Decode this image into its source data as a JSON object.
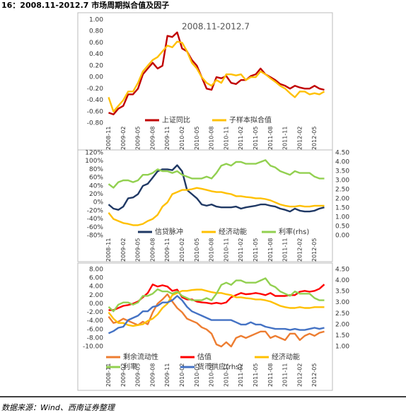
{
  "caption": "16：2008.11-2012.7 市场周期拟合值及因子",
  "source": "数据来源：Wind、西南证券整理",
  "chart_data": [
    {
      "type": "line",
      "title": "2008.11-2012.7",
      "categories": [
        "2008-11",
        null,
        null,
        "2009-02",
        null,
        null,
        "2009-05",
        null,
        null,
        "2009-08",
        null,
        null,
        "2009-11",
        null,
        null,
        "2010-02",
        null,
        null,
        "2010-05",
        null,
        null,
        "2010-08",
        null,
        null,
        "2010-11",
        null,
        null,
        "2011-02",
        null,
        null,
        "2011-05",
        null,
        null,
        "2011-08",
        null,
        null,
        "2011-11",
        null,
        null,
        "2012-02",
        null,
        null,
        "2012-05",
        null,
        null
      ],
      "ylim": [
        -0.8,
        1
      ],
      "yticks": [
        {
          "value": 1,
          "label": "1.00"
        },
        {
          "value": 0.8,
          "label": "0.80"
        },
        {
          "value": 0.6,
          "label": "0.60"
        },
        {
          "value": 0.4,
          "label": "0.40"
        },
        {
          "value": 0.2,
          "label": "0.20"
        },
        {
          "value": 0,
          "label": "0.00"
        },
        {
          "value": -0.2,
          "label": "-0.20"
        },
        {
          "value": -0.4,
          "label": "-0.40"
        },
        {
          "value": -0.6,
          "label": "-0.60"
        },
        {
          "value": -0.8,
          "label": "-0.80"
        }
      ],
      "series": [
        {
          "name": "上证同比",
          "color": "#c00000",
          "values": [
            -0.62,
            -0.65,
            -0.55,
            -0.5,
            -0.3,
            -0.3,
            -0.2,
            0.05,
            0.15,
            0.25,
            0.15,
            0.2,
            0.72,
            0.7,
            0.78,
            0.5,
            0.45,
            0.3,
            0.2,
            0.0,
            -0.2,
            -0.22,
            0.0,
            -0.02,
            0.02,
            -0.1,
            -0.12,
            -0.05,
            -0.05,
            0.02,
            0.05,
            0.15,
            0.05,
            0.0,
            -0.05,
            -0.12,
            -0.15,
            -0.2,
            -0.15,
            -0.18,
            -0.2,
            -0.2,
            -0.15,
            -0.2,
            -0.22
          ]
        },
        {
          "name": "子样本拟合值",
          "color": "#ffc000",
          "values": [
            -0.35,
            -0.6,
            -0.5,
            -0.4,
            -0.25,
            -0.25,
            -0.1,
            0.1,
            0.2,
            0.3,
            0.35,
            0.45,
            0.55,
            0.52,
            0.62,
            0.6,
            0.45,
            0.25,
            0.15,
            0.0,
            -0.1,
            -0.15,
            -0.05,
            -0.1,
            0.05,
            0.05,
            0.03,
            0.05,
            -0.05,
            0.0,
            0.0,
            0.1,
            0.05,
            -0.02,
            -0.08,
            -0.15,
            -0.2,
            -0.28,
            -0.35,
            -0.25,
            -0.25,
            -0.3,
            -0.28,
            -0.3,
            -0.25
          ]
        }
      ]
    },
    {
      "type": "line",
      "categories": [
        "2008-11",
        null,
        null,
        "2009-02",
        null,
        null,
        "2009-05",
        null,
        null,
        "2009-08",
        null,
        null,
        "2009-11",
        null,
        null,
        "2010-02",
        null,
        null,
        "2010-05",
        null,
        null,
        "2010-08",
        null,
        null,
        "2010-11",
        null,
        null,
        "2011-02",
        null,
        null,
        "2011-05",
        null,
        null,
        "2011-08",
        null,
        null,
        "2011-11",
        null,
        null,
        "2012-02",
        null,
        null,
        "2012-05",
        null,
        null
      ],
      "ylim": [
        -80,
        120
      ],
      "yticks": [
        {
          "value": 120,
          "label": "120%"
        },
        {
          "value": 100,
          "label": "100%"
        },
        {
          "value": 80,
          "label": "80%"
        },
        {
          "value": 60,
          "label": "60%"
        },
        {
          "value": 40,
          "label": "40%"
        },
        {
          "value": 20,
          "label": "20%"
        },
        {
          "value": 0,
          "label": "0%"
        },
        {
          "value": -20,
          "label": "-20%"
        },
        {
          "value": -40,
          "label": "-40%"
        },
        {
          "value": -60,
          "label": "-60%"
        },
        {
          "value": -80,
          "label": "-80%"
        }
      ],
      "y2lim": [
        0,
        4.5
      ],
      "y2ticks": [
        {
          "value": 4.5,
          "label": "4.50"
        },
        {
          "value": 4,
          "label": "4.00"
        },
        {
          "value": 3.5,
          "label": "3.50"
        },
        {
          "value": 3,
          "label": "3.00"
        },
        {
          "value": 2.5,
          "label": "2.50"
        },
        {
          "value": 2,
          "label": "2.00"
        },
        {
          "value": 1.5,
          "label": "1.50"
        },
        {
          "value": 1,
          "label": "1.00"
        },
        {
          "value": 0.5,
          "label": "0.50"
        },
        {
          "value": 0,
          "label": "0.00"
        }
      ],
      "series": [
        {
          "name": "信贷脉冲",
          "color": "#1f3864",
          "values": [
            -5,
            -15,
            -18,
            -10,
            10,
            12,
            20,
            40,
            45,
            60,
            75,
            80,
            80,
            78,
            90,
            75,
            30,
            20,
            10,
            -5,
            -8,
            -5,
            -10,
            -12,
            -12,
            -12,
            -10,
            -15,
            -12,
            -10,
            -8,
            -5,
            -5,
            -8,
            -10,
            -15,
            -18,
            -22,
            -15,
            -20,
            -22,
            -22,
            -20,
            -15,
            -12
          ]
        },
        {
          "name": "经济动能",
          "color": "#ffc000",
          "values": [
            -25,
            -40,
            -45,
            -50,
            -52,
            -55,
            -55,
            -52,
            -45,
            -40,
            -30,
            -10,
            0,
            20,
            25,
            30,
            30,
            32,
            35,
            33,
            30,
            27,
            25,
            25,
            22,
            20,
            15,
            15,
            13,
            12,
            10,
            10,
            8,
            5,
            0,
            -5,
            -8,
            -10,
            -10,
            -8,
            -10,
            -10,
            -8,
            -8,
            -8
          ]
        },
        {
          "name": "利率(rhs)",
          "color": "#92d050",
          "axis": "y2",
          "values": [
            2.8,
            2.6,
            2.9,
            3.0,
            3.0,
            2.9,
            3.0,
            3.3,
            3.3,
            3.4,
            3.6,
            3.5,
            3.5,
            3.4,
            3.5,
            3.3,
            3.2,
            3.1,
            3.1,
            3.1,
            3.2,
            3.1,
            3.4,
            3.8,
            3.9,
            3.8,
            4.0,
            4.0,
            3.9,
            3.9,
            3.9,
            4.0,
            4.1,
            3.8,
            3.7,
            3.5,
            3.4,
            3.3,
            3.5,
            3.4,
            3.4,
            3.4,
            3.2,
            3.1,
            3.1
          ]
        }
      ]
    },
    {
      "type": "line",
      "categories": [
        "2008-11",
        null,
        null,
        "2009-02",
        null,
        null,
        "2009-05",
        null,
        null,
        "2009-08",
        null,
        null,
        "2009-11",
        null,
        null,
        "2010-02",
        null,
        null,
        "2010-05",
        null,
        null,
        "2010-08",
        null,
        null,
        "2010-11",
        null,
        null,
        "2011-02",
        null,
        null,
        "2011-05",
        null,
        null,
        "2011-08",
        null,
        null,
        "2011-11",
        null,
        null,
        "2012-02",
        null,
        null,
        "2012-05",
        null,
        null
      ],
      "ylim": [
        -10,
        8
      ],
      "yticks": [
        {
          "value": 8,
          "label": "8.00"
        },
        {
          "value": 6,
          "label": "6.00"
        },
        {
          "value": 4,
          "label": "4.00"
        },
        {
          "value": 2,
          "label": "2.00"
        },
        {
          "value": 0,
          "label": "0.00"
        },
        {
          "value": -2,
          "label": "-2.00"
        },
        {
          "value": -4,
          "label": "-4.00"
        },
        {
          "value": -6,
          "label": "-6.00"
        },
        {
          "value": -8,
          "label": "-8.00"
        },
        {
          "value": -10,
          "label": "-10.00"
        }
      ],
      "y2lim": [
        1,
        4.5
      ],
      "y2ticks": [
        {
          "value": 4.5,
          "label": "4.50"
        },
        {
          "value": 4,
          "label": "4.00"
        },
        {
          "value": 3.5,
          "label": "3.50"
        },
        {
          "value": 3,
          "label": "3.00"
        },
        {
          "value": 2.5,
          "label": "2.50"
        },
        {
          "value": 2,
          "label": "2.00"
        },
        {
          "value": 1.5,
          "label": "1.50"
        },
        {
          "value": 1,
          "label": "1.00"
        }
      ],
      "series": [
        {
          "name": "剩余流动性",
          "color": "#ed7d31",
          "values": [
            -3,
            -4.5,
            -4.2,
            -3.5,
            -4,
            -4.5,
            -5,
            -4.2,
            -4.8,
            -2,
            0,
            1,
            2.2,
            0.5,
            -1,
            -2,
            -3.5,
            -4,
            -4.5,
            -5.5,
            -6,
            -7,
            -9.5,
            -10,
            -9,
            -10,
            -8,
            -7.5,
            -8,
            -7.5,
            -7,
            -6.5,
            -6.5,
            -8,
            -7.5,
            -8,
            -8.5,
            -7,
            -7,
            -8.5,
            -7.5,
            -7,
            -7.5,
            -6.8,
            -6.5
          ]
        },
        {
          "name": "估值",
          "color": "#ff0000",
          "values": [
            -1.5,
            -1.5,
            -1,
            -0.5,
            -0.3,
            0,
            0.5,
            1.5,
            2.5,
            4.5,
            4,
            4.3,
            4,
            3,
            3.3,
            1.5,
            1,
            1,
            0.5,
            0.3,
            0.2,
            0,
            0.2,
            0,
            0.3,
            1.5,
            2,
            2.5,
            2.2,
            2.3,
            2.5,
            2.3,
            2,
            2.5,
            1.8,
            1.8,
            1.8,
            2,
            2,
            2.8,
            3,
            2.8,
            3,
            3.5,
            4.5
          ]
        },
        {
          "name": "经济动能",
          "color": "#ffc000",
          "values": [
            -2,
            -3.5,
            -4.5,
            -4.5,
            -5,
            -5.2,
            -5,
            -4.8,
            -4,
            -3.5,
            -2.5,
            -1,
            0,
            2,
            2.5,
            3,
            3,
            3.2,
            3.3,
            3.3,
            3,
            2.7,
            2.5,
            2.5,
            2.2,
            2,
            1.5,
            1.5,
            1.3,
            1.2,
            1,
            1,
            0.8,
            0.5,
            0,
            -0.5,
            -0.8,
            -1,
            -1,
            -0.8,
            -1,
            -1,
            -0.8,
            -0.8,
            -0.8
          ]
        },
        {
          "name": "利率",
          "color": "#92d050",
          "axis": "y2",
          "values": [
            2.8,
            2.6,
            2.9,
            3.0,
            3.0,
            2.9,
            3.0,
            3.3,
            3.3,
            3.4,
            3.6,
            3.5,
            3.5,
            3.4,
            3.5,
            3.3,
            3.2,
            3.1,
            3.1,
            3.1,
            3.2,
            3.1,
            3.4,
            3.8,
            3.9,
            3.8,
            4.0,
            4.0,
            3.9,
            3.9,
            3.9,
            4.0,
            4.1,
            3.8,
            3.7,
            3.5,
            3.4,
            3.3,
            3.5,
            3.4,
            3.4,
            3.4,
            3.2,
            3.1,
            3.1
          ]
        },
        {
          "name": "货币供应(rhs)",
          "color": "#4472c4",
          "axis": "y2",
          "values": [
            1.6,
            1.7,
            1.85,
            1.9,
            2.2,
            2.3,
            2.4,
            2.6,
            2.6,
            2.8,
            2.85,
            3.0,
            3.0,
            3.1,
            3.3,
            3.1,
            2.8,
            2.6,
            2.5,
            2.4,
            2.3,
            2.2,
            2.2,
            2.2,
            2.2,
            2.2,
            2.1,
            2.0,
            2.0,
            2.1,
            2.0,
            2.0,
            1.9,
            1.85,
            1.8,
            1.8,
            1.8,
            1.75,
            1.8,
            1.75,
            1.75,
            1.8,
            1.85,
            1.8,
            1.85
          ]
        }
      ]
    }
  ]
}
